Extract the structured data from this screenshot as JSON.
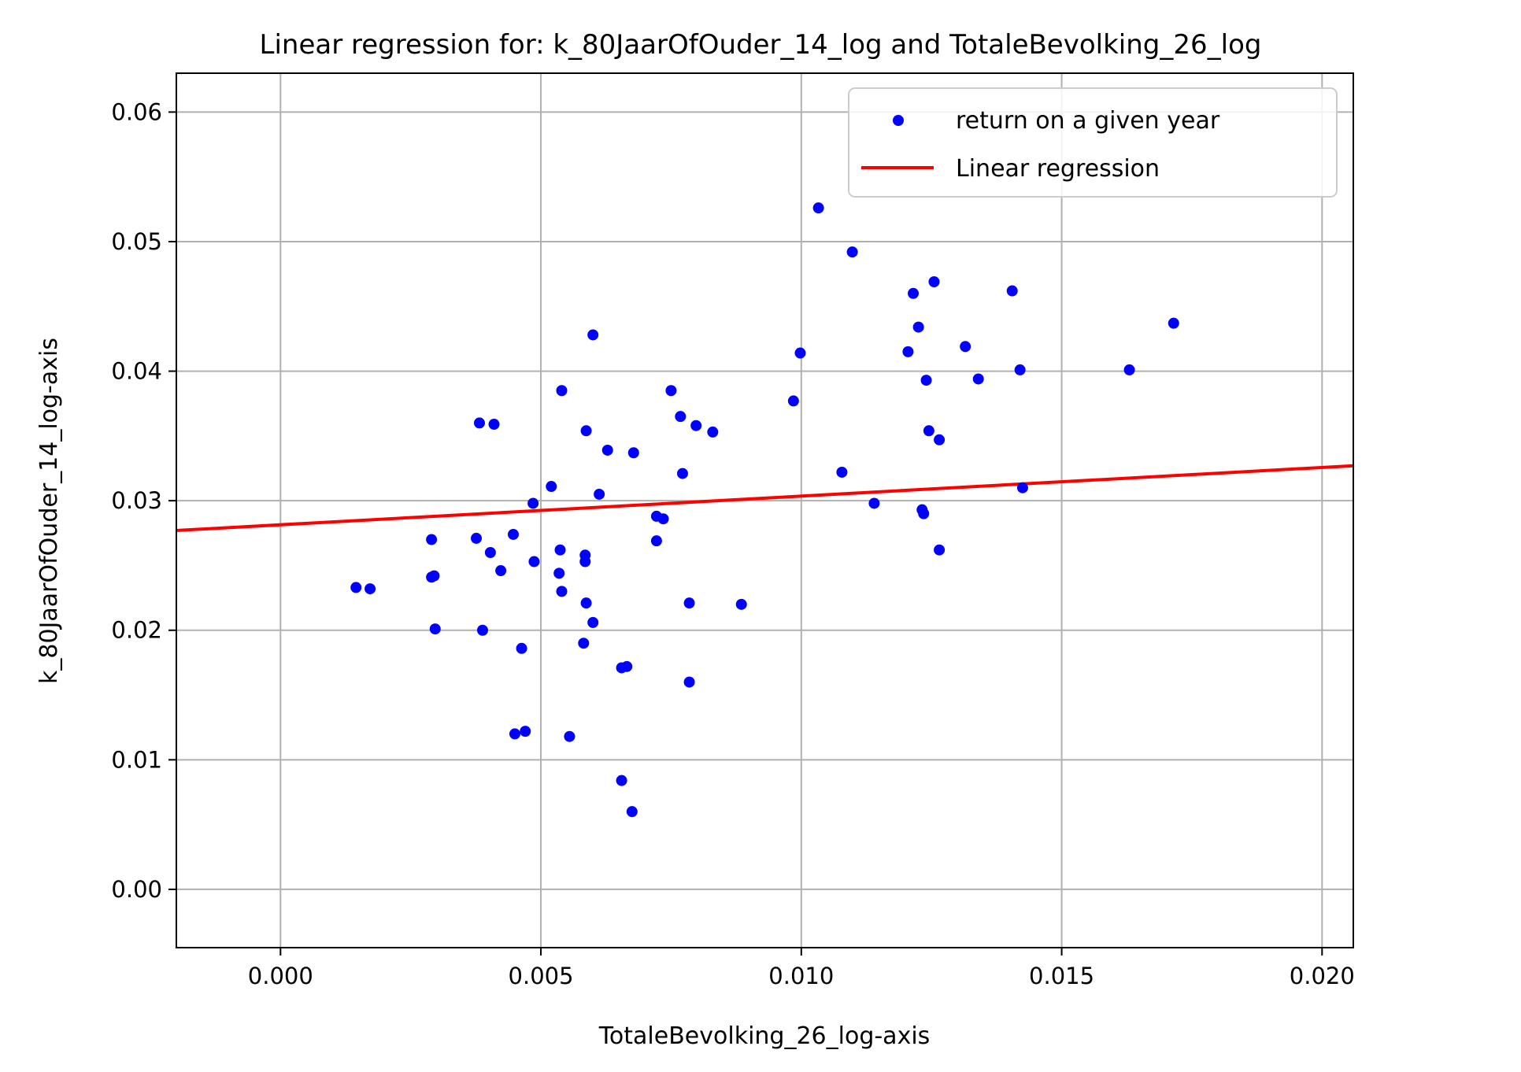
{
  "chart_data": {
    "type": "scatter",
    "title": "Linear regression for: k_80JaarOfOuder_14_log and TotaleBevolking_26_log",
    "xlabel": "TotaleBevolking_26_log-axis",
    "ylabel": "k_80JaarOfOuder_14_log-axis",
    "xlim": [
      -0.002,
      0.0206
    ],
    "ylim": [
      -0.0045,
      0.063
    ],
    "xticks": [
      "0.000",
      "0.005",
      "0.010",
      "0.015",
      "0.020"
    ],
    "yticks": [
      "0.00",
      "0.01",
      "0.02",
      "0.03",
      "0.04",
      "0.05",
      "0.06"
    ],
    "grid": true,
    "legend_position": "top-right",
    "series": [
      {
        "name": "return on a given year",
        "kind": "scatter",
        "color": "#0000ff",
        "points": [
          [
            0.00145,
            0.0233
          ],
          [
            0.00172,
            0.0232
          ],
          [
            0.0029,
            0.027
          ],
          [
            0.0029,
            0.0241
          ],
          [
            0.00295,
            0.0242
          ],
          [
            0.00297,
            0.0201
          ],
          [
            0.00376,
            0.0271
          ],
          [
            0.00382,
            0.036
          ],
          [
            0.00388,
            0.02
          ],
          [
            0.00403,
            0.026
          ],
          [
            0.0041,
            0.0359
          ],
          [
            0.00423,
            0.0246
          ],
          [
            0.00447,
            0.0274
          ],
          [
            0.0045,
            0.012
          ],
          [
            0.00463,
            0.0186
          ],
          [
            0.0047,
            0.0122
          ],
          [
            0.00485,
            0.0298
          ],
          [
            0.00487,
            0.0253
          ],
          [
            0.0052,
            0.0311
          ],
          [
            0.00535,
            0.0244
          ],
          [
            0.00537,
            0.0262
          ],
          [
            0.0054,
            0.023
          ],
          [
            0.0054,
            0.0385
          ],
          [
            0.00555,
            0.0118
          ],
          [
            0.00582,
            0.019
          ],
          [
            0.00585,
            0.0253
          ],
          [
            0.00585,
            0.0258
          ],
          [
            0.00587,
            0.0354
          ],
          [
            0.00587,
            0.0221
          ],
          [
            0.006,
            0.0206
          ],
          [
            0.006,
            0.0428
          ],
          [
            0.00612,
            0.0305
          ],
          [
            0.00628,
            0.0339
          ],
          [
            0.00655,
            0.0084
          ],
          [
            0.00655,
            0.0171
          ],
          [
            0.00665,
            0.0172
          ],
          [
            0.00675,
            0.006
          ],
          [
            0.00678,
            0.0337
          ],
          [
            0.00722,
            0.0288
          ],
          [
            0.00722,
            0.0269
          ],
          [
            0.00735,
            0.0286
          ],
          [
            0.0075,
            0.0385
          ],
          [
            0.00768,
            0.0365
          ],
          [
            0.00772,
            0.0321
          ],
          [
            0.00785,
            0.0221
          ],
          [
            0.00785,
            0.016
          ],
          [
            0.00798,
            0.0358
          ],
          [
            0.0083,
            0.0353
          ],
          [
            0.00885,
            0.022
          ],
          [
            0.00985,
            0.0377
          ],
          [
            0.00998,
            0.0414
          ],
          [
            0.01033,
            0.0526
          ],
          [
            0.01078,
            0.0322
          ],
          [
            0.01098,
            0.0492
          ],
          [
            0.0114,
            0.0298
          ],
          [
            0.01205,
            0.0415
          ],
          [
            0.01215,
            0.046
          ],
          [
            0.01225,
            0.0434
          ],
          [
            0.01232,
            0.0293
          ],
          [
            0.01235,
            0.029
          ],
          [
            0.0124,
            0.0393
          ],
          [
            0.01245,
            0.0354
          ],
          [
            0.01255,
            0.0469
          ],
          [
            0.01265,
            0.0347
          ],
          [
            0.01265,
            0.0262
          ],
          [
            0.01315,
            0.0419
          ],
          [
            0.0134,
            0.0394
          ],
          [
            0.01405,
            0.0462
          ],
          [
            0.0142,
            0.0401
          ],
          [
            0.01425,
            0.031
          ],
          [
            0.0163,
            0.0401
          ],
          [
            0.01715,
            0.0437
          ]
        ]
      },
      {
        "name": "Linear regression",
        "kind": "line",
        "color": "#ff0000",
        "points": [
          [
            -0.002,
            0.0277
          ],
          [
            0.0206,
            0.0327
          ]
        ]
      }
    ]
  }
}
